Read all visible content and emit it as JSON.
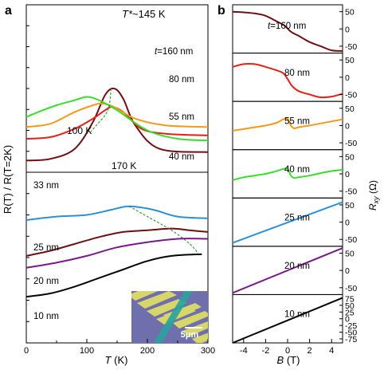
{
  "chart_data": [
    {
      "type": "line",
      "panel": "a",
      "ylabel": "R(T) / R(T=2K)",
      "xlabel": {
        "main": "T",
        "unit": " (K)"
      },
      "xlim": [
        0,
        300
      ],
      "xticks": [
        "0",
        "100",
        "200",
        "300"
      ],
      "annotations": {
        "tstar": {
          "italic": "T*",
          "rest": "~145 K"
        },
        "t100": "100 K",
        "t170": "170 K"
      },
      "upper_block": {
        "series": [
          {
            "name": "t=160 nm",
            "color": "#6e0f12",
            "points": [
              [
                0,
                0.93
              ],
              [
                40,
                0.92
              ],
              [
                80,
                0.86
              ],
              [
                110,
                0.7
              ],
              [
                130,
                0.54
              ],
              [
                145,
                0.5
              ],
              [
                160,
                0.56
              ],
              [
                180,
                0.72
              ],
              [
                220,
                0.86
              ],
              [
                300,
                0.88
              ]
            ]
          },
          {
            "name": "80 nm",
            "color": "#e0221b",
            "points": [
              [
                0,
                0.8
              ],
              [
                40,
                0.79
              ],
              [
                80,
                0.74
              ],
              [
                110,
                0.68
              ],
              [
                130,
                0.63
              ],
              [
                142,
                0.61
              ],
              [
                160,
                0.64
              ],
              [
                190,
                0.74
              ],
              [
                230,
                0.77
              ],
              [
                300,
                0.78
              ]
            ]
          },
          {
            "name": "55 nm",
            "color": "#f39a1a",
            "points": [
              [
                0,
                0.73
              ],
              [
                40,
                0.71
              ],
              [
                80,
                0.64
              ],
              [
                110,
                0.6
              ],
              [
                125,
                0.59
              ],
              [
                145,
                0.61
              ],
              [
                180,
                0.68
              ],
              [
                230,
                0.72
              ],
              [
                300,
                0.73
              ]
            ]
          },
          {
            "name": "40 nm",
            "color": "#39de2c",
            "points": [
              [
                0,
                0.67
              ],
              [
                20,
                0.64
              ],
              [
                50,
                0.6
              ],
              [
                80,
                0.57
              ],
              [
                100,
                0.55
              ],
              [
                120,
                0.57
              ],
              [
                150,
                0.63
              ],
              [
                200,
                0.75
              ],
              [
                250,
                0.8
              ],
              [
                300,
                0.81
              ]
            ]
          }
        ],
        "peak_trace": [
          [
            140,
            0.5
          ],
          [
            137,
            0.6
          ],
          [
            130,
            0.66
          ],
          [
            118,
            0.71
          ],
          [
            106,
            0.76
          ]
        ]
      },
      "lower_block": {
        "series": [
          {
            "name": "33 nm",
            "color": "#2a90d8",
            "points": [
              [
                0,
                0.28
              ],
              [
                50,
                0.26
              ],
              [
                100,
                0.25
              ],
              [
                140,
                0.22
              ],
              [
                170,
                0.2
              ],
              [
                210,
                0.22
              ],
              [
                250,
                0.26
              ],
              [
                300,
                0.27
              ]
            ]
          },
          {
            "name": "25 nm",
            "color": "#6a1014",
            "points": [
              [
                0,
                0.49
              ],
              [
                40,
                0.46
              ],
              [
                80,
                0.42
              ],
              [
                120,
                0.38
              ],
              [
                160,
                0.35
              ],
              [
                200,
                0.34
              ],
              [
                240,
                0.33
              ],
              [
                270,
                0.34
              ],
              [
                300,
                0.35
              ]
            ]
          },
          {
            "name": "20 nm",
            "color": "#7a1a8a",
            "points": [
              [
                0,
                0.56
              ],
              [
                50,
                0.53
              ],
              [
                100,
                0.49
              ],
              [
                150,
                0.44
              ],
              [
                200,
                0.41
              ],
              [
                250,
                0.39
              ],
              [
                300,
                0.39
              ]
            ]
          },
          {
            "name": "10 nm",
            "color": "#050505",
            "points": [
              [
                0,
                0.73
              ],
              [
                40,
                0.71
              ],
              [
                80,
                0.67
              ],
              [
                120,
                0.62
              ],
              [
                160,
                0.57
              ],
              [
                200,
                0.52
              ],
              [
                240,
                0.49
              ],
              [
                290,
                0.48
              ]
            ]
          }
        ],
        "peak_trace": [
          [
            170,
            0.2
          ],
          [
            200,
            0.26
          ],
          [
            240,
            0.34
          ],
          [
            270,
            0.42
          ],
          [
            285,
            0.48
          ]
        ]
      },
      "inset": {
        "scale_label": "5μm"
      }
    },
    {
      "type": "line",
      "panel": "b",
      "xlabel": {
        "main": "B",
        "unit": " (T)"
      },
      "ylabel": {
        "main": "R",
        "sub": "xy",
        "unit": " (Ω)"
      },
      "xlim": [
        -5,
        5
      ],
      "xticks": [
        "-4",
        "-2",
        "0",
        "2",
        "4"
      ],
      "series": [
        {
          "name": "t=160 nm",
          "color": "#6e0f12",
          "ylim": [
            -70,
            70
          ],
          "yticks": [
            50,
            0,
            -50
          ],
          "points": [
            [
              -5,
              50
            ],
            [
              -4,
              48
            ],
            [
              -3,
              45
            ],
            [
              -2,
              38
            ],
            [
              -1,
              22
            ],
            [
              -0.3,
              10
            ],
            [
              0.3,
              -8
            ],
            [
              1,
              -20
            ],
            [
              2,
              -38
            ],
            [
              3,
              -50
            ],
            [
              4,
              -62
            ],
            [
              5,
              -64
            ]
          ]
        },
        {
          "name": "80 nm",
          "color": "#e0221b",
          "ylim": [
            -70,
            70
          ],
          "yticks": [
            50,
            0,
            -50
          ],
          "points": [
            [
              -5,
              30
            ],
            [
              -4,
              38
            ],
            [
              -3,
              38
            ],
            [
              -2,
              30
            ],
            [
              -1,
              20
            ],
            [
              -0.4,
              12
            ],
            [
              0,
              -5
            ],
            [
              0.4,
              -25
            ],
            [
              1,
              -40
            ],
            [
              2,
              -50
            ],
            [
              3,
              -58
            ],
            [
              4,
              -56
            ],
            [
              5,
              -48
            ]
          ]
        },
        {
          "name": "55 nm",
          "color": "#f39a1a",
          "ylim": [
            -70,
            70
          ],
          "yticks": [
            50,
            0,
            -50
          ],
          "points": [
            [
              -5,
              -15
            ],
            [
              -4,
              -10
            ],
            [
              -3,
              -5
            ],
            [
              -2,
              0
            ],
            [
              -1,
              8
            ],
            [
              -0.4,
              18
            ],
            [
              0,
              20
            ],
            [
              0.3,
              0
            ],
            [
              0.6,
              -8
            ],
            [
              1,
              -5
            ],
            [
              2,
              0
            ],
            [
              3,
              6
            ],
            [
              4,
              12
            ],
            [
              5,
              18
            ]
          ]
        },
        {
          "name": "40 nm",
          "color": "#39de2c",
          "ylim": [
            -70,
            70
          ],
          "yticks": [
            50,
            0,
            -50
          ],
          "points": [
            [
              -5,
              -18
            ],
            [
              -4,
              -10
            ],
            [
              -3,
              -5
            ],
            [
              -2,
              0
            ],
            [
              -1,
              8
            ],
            [
              -0.4,
              14
            ],
            [
              0,
              15
            ],
            [
              0.3,
              -5
            ],
            [
              0.6,
              -12
            ],
            [
              1,
              -10
            ],
            [
              2,
              -5
            ],
            [
              3,
              2
            ],
            [
              4,
              8
            ],
            [
              5,
              12
            ]
          ]
        },
        {
          "name": "25 nm",
          "color": "#2a90d8",
          "ylim": [
            -70,
            70
          ],
          "yticks": [
            50,
            0,
            -50
          ],
          "points": [
            [
              -5,
              -60
            ],
            [
              5,
              58
            ]
          ]
        },
        {
          "name": "20 nm",
          "color": "#7a1a8a",
          "ylim": [
            -70,
            70
          ],
          "yticks": [
            50,
            0,
            -50
          ],
          "points": [
            [
              -5,
              -65
            ],
            [
              5,
              65
            ]
          ]
        },
        {
          "name": "10 nm",
          "color": "#050505",
          "ylim": [
            -90,
            90
          ],
          "yticks": [
            75,
            50,
            25,
            0,
            -25,
            -50,
            -75
          ],
          "points": [
            [
              -5,
              -90
            ],
            [
              5,
              78
            ]
          ]
        }
      ]
    }
  ],
  "inset_colors": {
    "background": "#6f6fae",
    "electrode": "#d6d66a",
    "flake": "#29a39d",
    "scalebar": "#ffffff"
  }
}
